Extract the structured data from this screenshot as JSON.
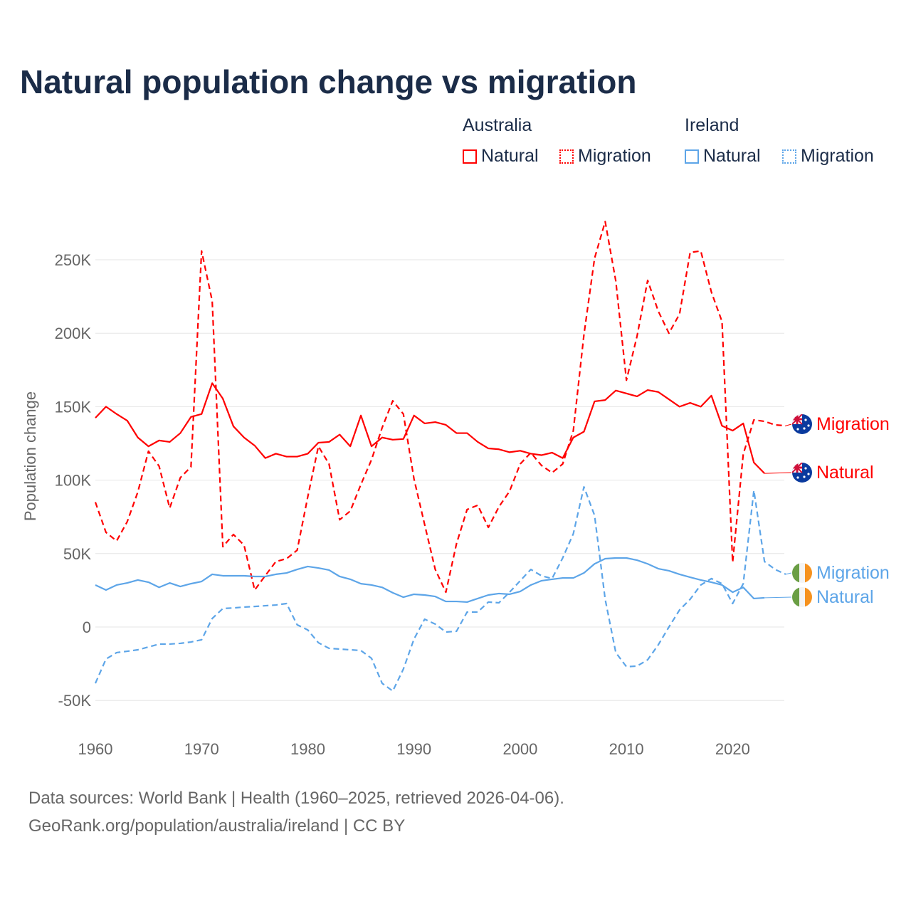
{
  "title": "Natural population change vs migration",
  "legend": {
    "groups": [
      {
        "name": "Australia",
        "color": "#ff0000",
        "items": [
          "Natural",
          "Migration"
        ]
      },
      {
        "name": "Ireland",
        "color": "#5da5e8",
        "items": [
          "Natural",
          "Migration"
        ]
      }
    ]
  },
  "chart_data": {
    "type": "line",
    "title": "Natural population change vs migration",
    "xlabel": "",
    "ylabel": "Population change",
    "xlim": [
      1960,
      2025
    ],
    "ylim": [
      -50000,
      270000
    ],
    "x_ticks": [
      1960,
      1970,
      1980,
      1990,
      2000,
      2010,
      2020
    ],
    "y_ticks": [
      {
        "v": -50000,
        "label": "-50K"
      },
      {
        "v": 0,
        "label": "0"
      },
      {
        "v": 50000,
        "label": "50K"
      },
      {
        "v": 100000,
        "label": "100K"
      },
      {
        "v": 150000,
        "label": "150K"
      },
      {
        "v": 200000,
        "label": "200K"
      },
      {
        "v": 250000,
        "label": "250K"
      }
    ],
    "grid": true,
    "series": [
      {
        "name": "Australia Natural",
        "country": "Australia",
        "kind": "Natural",
        "label": "Natural",
        "color": "#ff0000",
        "dashed": false,
        "start": 1960,
        "values": [
          142.4,
          150,
          145,
          140.5,
          129,
          123,
          127,
          126,
          132,
          143,
          145,
          166,
          155.5,
          136.6,
          129,
          123.5,
          115,
          118,
          116,
          116,
          118,
          125.5,
          126,
          131,
          123,
          144,
          123,
          129,
          127.5,
          128,
          144,
          138.6,
          139.5,
          137.6,
          132,
          132,
          126,
          121.6,
          121,
          119,
          120,
          118,
          117,
          118.7,
          115,
          129,
          133,
          153.6,
          154.5,
          161,
          159,
          157,
          161.3,
          160,
          155,
          150,
          152.6,
          150,
          157.5,
          137,
          133.7,
          138.6,
          112,
          104.6
        ]
      },
      {
        "name": "Australia Migration",
        "country": "Australia",
        "kind": "Migration",
        "label": "Migration",
        "color": "#ff0000",
        "dashed": true,
        "start": 1960,
        "values": [
          85,
          64.4,
          58.6,
          71.7,
          92,
          119.7,
          109.5,
          81,
          101.7,
          109,
          256,
          222,
          54.7,
          63,
          55.7,
          25.2,
          35,
          44.6,
          46.5,
          52.3,
          88.7,
          123,
          111,
          73,
          79,
          97,
          113.9,
          135.7,
          154,
          145,
          100.8,
          69.8,
          39.2,
          23.7,
          56.7,
          80,
          82.9,
          67.8,
          81.9,
          92.5,
          111,
          118.7,
          110,
          105,
          111,
          133.7,
          199,
          251,
          276,
          235.5,
          168,
          198,
          236,
          215,
          200,
          213,
          255,
          256,
          228,
          208,
          44,
          117.7,
          141,
          140,
          137.6,
          137
        ]
      },
      {
        "name": "Ireland Natural",
        "country": "Ireland",
        "kind": "Natural",
        "label": "Natural",
        "color": "#5da5e8",
        "dashed": false,
        "start": 1960,
        "values": [
          28.6,
          25.2,
          28.6,
          30,
          32,
          30.5,
          27,
          30,
          27.6,
          29.5,
          31,
          35.9,
          34.9,
          34.9,
          34.9,
          34.4,
          34.4,
          35.9,
          36.8,
          39.2,
          41.2,
          40.2,
          38.8,
          34.4,
          32.5,
          29.5,
          28.6,
          27,
          23.3,
          20.3,
          22.3,
          21.8,
          20.8,
          17.4,
          17.4,
          17,
          19.4,
          21.8,
          22.8,
          22.3,
          24.2,
          28.6,
          31.5,
          32.5,
          33.4,
          33.4,
          36.8,
          43,
          46.5,
          47,
          47,
          45.5,
          43,
          39.7,
          38.3,
          35.9,
          33.9,
          32,
          30.5,
          28.6,
          23.7,
          27,
          19.4,
          19.9
        ]
      },
      {
        "name": "Ireland Migration",
        "country": "Ireland",
        "kind": "Migration",
        "label": "Migration",
        "color": "#5da5e8",
        "dashed": true,
        "start": 1960,
        "values": [
          -38.3,
          -21.8,
          -17.4,
          -16.5,
          -15.5,
          -13.6,
          -11.6,
          -11.6,
          -11.1,
          -10.2,
          -8.7,
          5.8,
          12.6,
          13,
          13.6,
          14,
          14.5,
          15,
          16,
          1.5,
          -2,
          -10.7,
          -14.5,
          -15,
          -15.5,
          -16,
          -21.3,
          -38.3,
          -43.6,
          -28.6,
          -8.2,
          5.3,
          2,
          -3.4,
          -2.9,
          10.2,
          10.2,
          17,
          16.5,
          23.7,
          31.5,
          39.2,
          34.9,
          33,
          47,
          63.5,
          95.4,
          76,
          18.9,
          -17.4,
          -27,
          -26.6,
          -22.3,
          -12.1,
          0,
          11.6,
          18.9,
          28.6,
          33,
          29.5,
          16,
          29.5,
          93,
          44.6,
          39.2,
          35.9
        ]
      }
    ],
    "value_unit": "thousands"
  },
  "footer": {
    "line1": "Data sources: World Bank | Health (1960–2025, retrieved 2026-04-06).",
    "line2": "GeoRank.org/population/australia/ireland | CC BY"
  }
}
